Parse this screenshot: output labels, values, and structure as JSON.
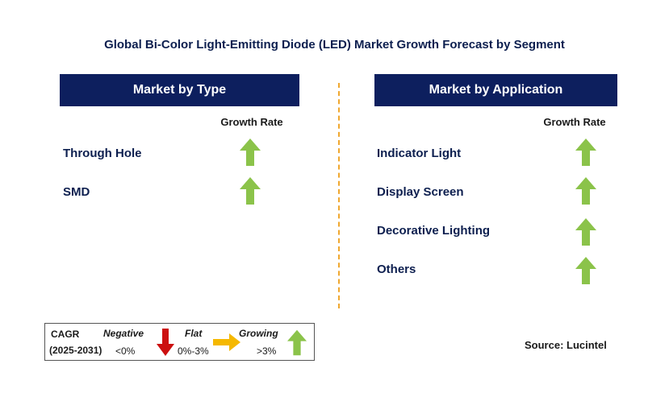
{
  "title": "Global Bi-Color Light-Emitting Diode (LED) Market Growth Forecast by Segment",
  "left_panel": {
    "header": "Market by Type",
    "growth_label": "Growth Rate",
    "items": [
      {
        "label": "Through Hole",
        "trend": "growing"
      },
      {
        "label": "SMD",
        "trend": "growing"
      }
    ]
  },
  "right_panel": {
    "header": "Market by Application",
    "growth_label": "Growth Rate",
    "items": [
      {
        "label": "Indicator Light",
        "trend": "growing"
      },
      {
        "label": "Display Screen",
        "trend": "growing"
      },
      {
        "label": "Decorative Lighting",
        "trend": "growing"
      },
      {
        "label": "Others",
        "trend": "growing"
      }
    ]
  },
  "legend": {
    "cagr": "CAGR",
    "period": "(2025-2031)",
    "negative_label": "Negative",
    "negative_range": "<0%",
    "flat_label": "Flat",
    "flat_range": "0%-3%",
    "growing_label": "Growing",
    "growing_range": ">3%"
  },
  "source": "Source: Lucintel",
  "colors": {
    "header_bg": "#0d1f5e",
    "up_arrow": "#8bc34a",
    "down_arrow": "#cc1010",
    "flat_arrow": "#f5b800",
    "divider": "#f0a830"
  }
}
